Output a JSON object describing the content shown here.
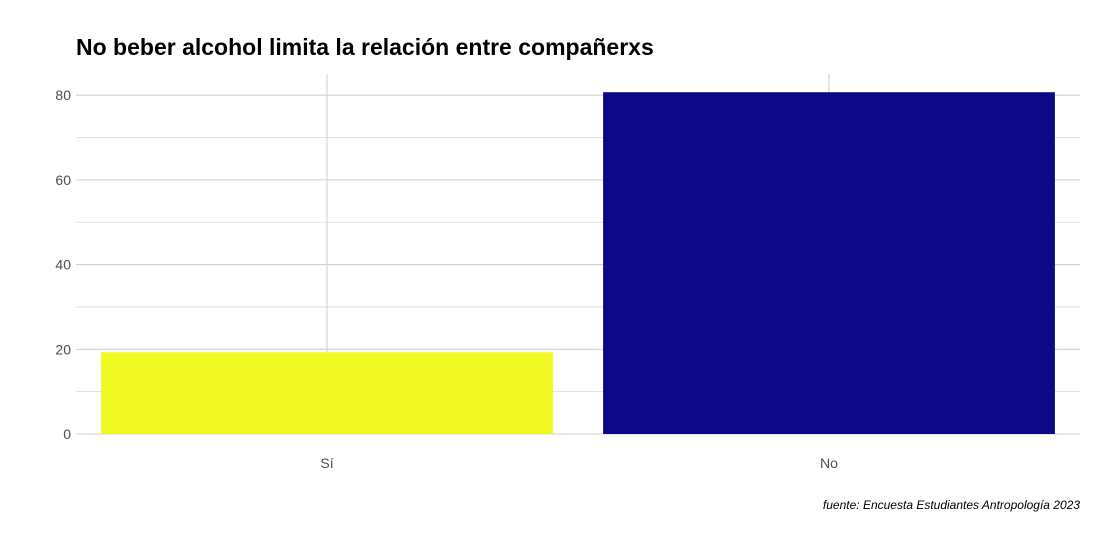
{
  "chart_data": {
    "type": "bar",
    "title": "No beber alcohol limita la relación entre compañerxs",
    "caption": "fuente: Encuesta Estudiantes Antropología 2023",
    "xlabel": "",
    "ylabel": "",
    "categories": [
      "Sí",
      "No"
    ],
    "values": [
      19.3,
      80.7
    ],
    "colors": [
      "#f0f921",
      "#0d0887"
    ],
    "ylim": [
      0,
      85
    ],
    "yticks": [
      0,
      20,
      40,
      60,
      80
    ],
    "grid": true,
    "legend": "none"
  }
}
